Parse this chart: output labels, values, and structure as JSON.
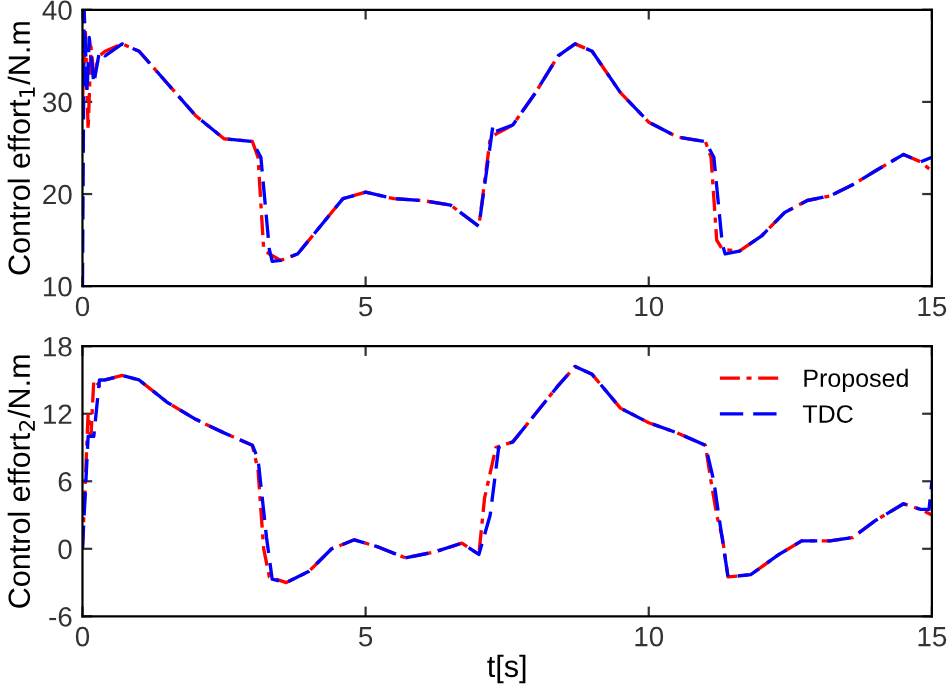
{
  "chart_data": [
    {
      "type": "line",
      "ylabel": "Control effort$_{1}$/N.m",
      "xlim": [
        0,
        15
      ],
      "xticks": [
        0,
        5,
        10,
        15
      ],
      "ylim": [
        10,
        40
      ],
      "yticks": [
        10,
        20,
        30,
        40
      ],
      "grid": false,
      "legend": false,
      "series": [
        {
          "color": "#ff0000",
          "line_style": "dashdot",
          "x": [
            0,
            0.05,
            0.1,
            0.15,
            0.2,
            0.3,
            0.4,
            0.7,
            1.0,
            1.5,
            2.0,
            2.5,
            3.0,
            3.1,
            3.2,
            3.3,
            3.5,
            3.8,
            4.2,
            4.6,
            5.0,
            5.5,
            6.0,
            6.5,
            7.0,
            7.2,
            7.3,
            7.6,
            8.0,
            8.4,
            8.7,
            9.0,
            9.5,
            10.0,
            10.5,
            11.0,
            11.1,
            11.2,
            11.3,
            11.6,
            12.0,
            12.4,
            12.8,
            13.2,
            13.6,
            14.0,
            14.5,
            14.8,
            15
          ],
          "values": [
            30,
            38,
            27,
            36,
            33,
            35,
            35.5,
            36.3,
            35.5,
            32,
            28.5,
            26,
            25.7,
            24,
            14,
            13.5,
            12.8,
            13.5,
            16.5,
            19.5,
            20.2,
            19.5,
            19.3,
            18.8,
            16.5,
            26,
            26.5,
            27.5,
            31,
            35,
            36.3,
            35.5,
            31,
            27.8,
            26.2,
            25.7,
            24,
            15,
            14,
            13.8,
            15.5,
            18,
            19.3,
            19.8,
            21,
            22.5,
            24.3,
            23.5,
            22.5
          ]
        },
        {
          "color": "#0000ff",
          "line_style": "dashed",
          "x": [
            0,
            0.03,
            0.08,
            0.12,
            0.2,
            0.3,
            0.4,
            0.7,
            1.0,
            1.5,
            2.0,
            2.5,
            3.0,
            3.15,
            3.3,
            3.35,
            3.5,
            3.8,
            4.2,
            4.6,
            5.0,
            5.5,
            6.0,
            6.5,
            7.0,
            7.25,
            7.3,
            7.6,
            8.0,
            8.4,
            8.7,
            9.0,
            9.5,
            10.0,
            10.5,
            11.0,
            11.15,
            11.3,
            11.35,
            11.6,
            12.0,
            12.4,
            12.8,
            13.2,
            13.6,
            14.0,
            14.5,
            14.8,
            15
          ],
          "values": [
            10,
            40,
            31,
            37,
            32,
            35.5,
            35,
            36.3,
            35.5,
            32,
            28.5,
            26,
            25.7,
            24,
            14,
            12.7,
            12.8,
            13.5,
            16.5,
            19.5,
            20.2,
            19.5,
            19.3,
            18.8,
            16.5,
            27.5,
            26.8,
            27.5,
            31,
            35,
            36.3,
            35.5,
            31,
            27.8,
            26.2,
            25.7,
            24,
            14.5,
            13.5,
            13.8,
            15.5,
            18,
            19.3,
            19.8,
            21,
            22.5,
            24.3,
            23.5,
            24
          ]
        }
      ]
    },
    {
      "type": "line",
      "xlabel": "t[s]",
      "ylabel": "Control effort$_{2}$/N.m",
      "xlim": [
        0,
        15
      ],
      "xticks": [
        0,
        5,
        10,
        15
      ],
      "ylim": [
        -6,
        18
      ],
      "yticks": [
        -6,
        0,
        6,
        12,
        18
      ],
      "grid": false,
      "legend": "top right",
      "series": [
        {
          "name": "Proposed",
          "color": "#ff0000",
          "line_style": "dashdot",
          "x": [
            0,
            0.1,
            0.15,
            0.2,
            0.3,
            0.4,
            0.7,
            1.0,
            1.5,
            2.0,
            2.5,
            3.0,
            3.1,
            3.2,
            3.3,
            3.6,
            4.0,
            4.4,
            4.8,
            5.2,
            5.7,
            6.2,
            6.7,
            7.0,
            7.1,
            7.3,
            7.6,
            8.0,
            8.4,
            8.7,
            9.0,
            9.5,
            10.0,
            10.5,
            11.0,
            11.1,
            11.2,
            11.3,
            11.4,
            11.8,
            12.3,
            12.7,
            13.2,
            13.6,
            14.0,
            14.5,
            14.8,
            15
          ],
          "values": [
            0,
            12,
            10,
            15,
            14.5,
            15,
            15.4,
            15,
            13,
            11.5,
            10.3,
            9.2,
            7,
            0,
            -2.5,
            -3,
            -2,
            0,
            0.8,
            0.2,
            -0.8,
            -0.3,
            0.5,
            -0.5,
            4.5,
            9,
            9.5,
            12,
            14.5,
            16.2,
            15.5,
            12.5,
            11.2,
            10.3,
            9.2,
            6,
            3,
            1,
            -2.5,
            -2.3,
            -0.5,
            0.7,
            0.7,
            1,
            2.5,
            4,
            3.5,
            3
          ]
        },
        {
          "name": "TDC",
          "color": "#0000ff",
          "line_style": "dashed",
          "x": [
            0,
            0.1,
            0.2,
            0.3,
            0.4,
            0.7,
            1.0,
            1.5,
            2.0,
            2.5,
            3.0,
            3.1,
            3.25,
            3.35,
            3.6,
            4.0,
            4.4,
            4.8,
            5.2,
            5.7,
            6.2,
            6.7,
            7.0,
            7.2,
            7.35,
            7.6,
            8.0,
            8.4,
            8.7,
            9.0,
            9.5,
            10.0,
            10.5,
            11.0,
            11.15,
            11.25,
            11.4,
            11.8,
            12.3,
            12.7,
            13.2,
            13.6,
            14.0,
            14.5,
            14.8,
            14.95,
            15
          ],
          "values": [
            0,
            10,
            10,
            15,
            15,
            15.4,
            15,
            13,
            11.5,
            10.3,
            9.2,
            8,
            1,
            -2.7,
            -3,
            -2,
            0,
            0.8,
            0.2,
            -0.8,
            -0.3,
            0.5,
            -0.5,
            3,
            9,
            9.5,
            12,
            14.5,
            16.2,
            15.5,
            12.5,
            11.2,
            10.3,
            9.2,
            6,
            2.5,
            -2.5,
            -2.3,
            -0.5,
            0.7,
            0.7,
            1,
            2.5,
            4,
            3.5,
            3.5,
            6
          ]
        }
      ]
    }
  ]
}
